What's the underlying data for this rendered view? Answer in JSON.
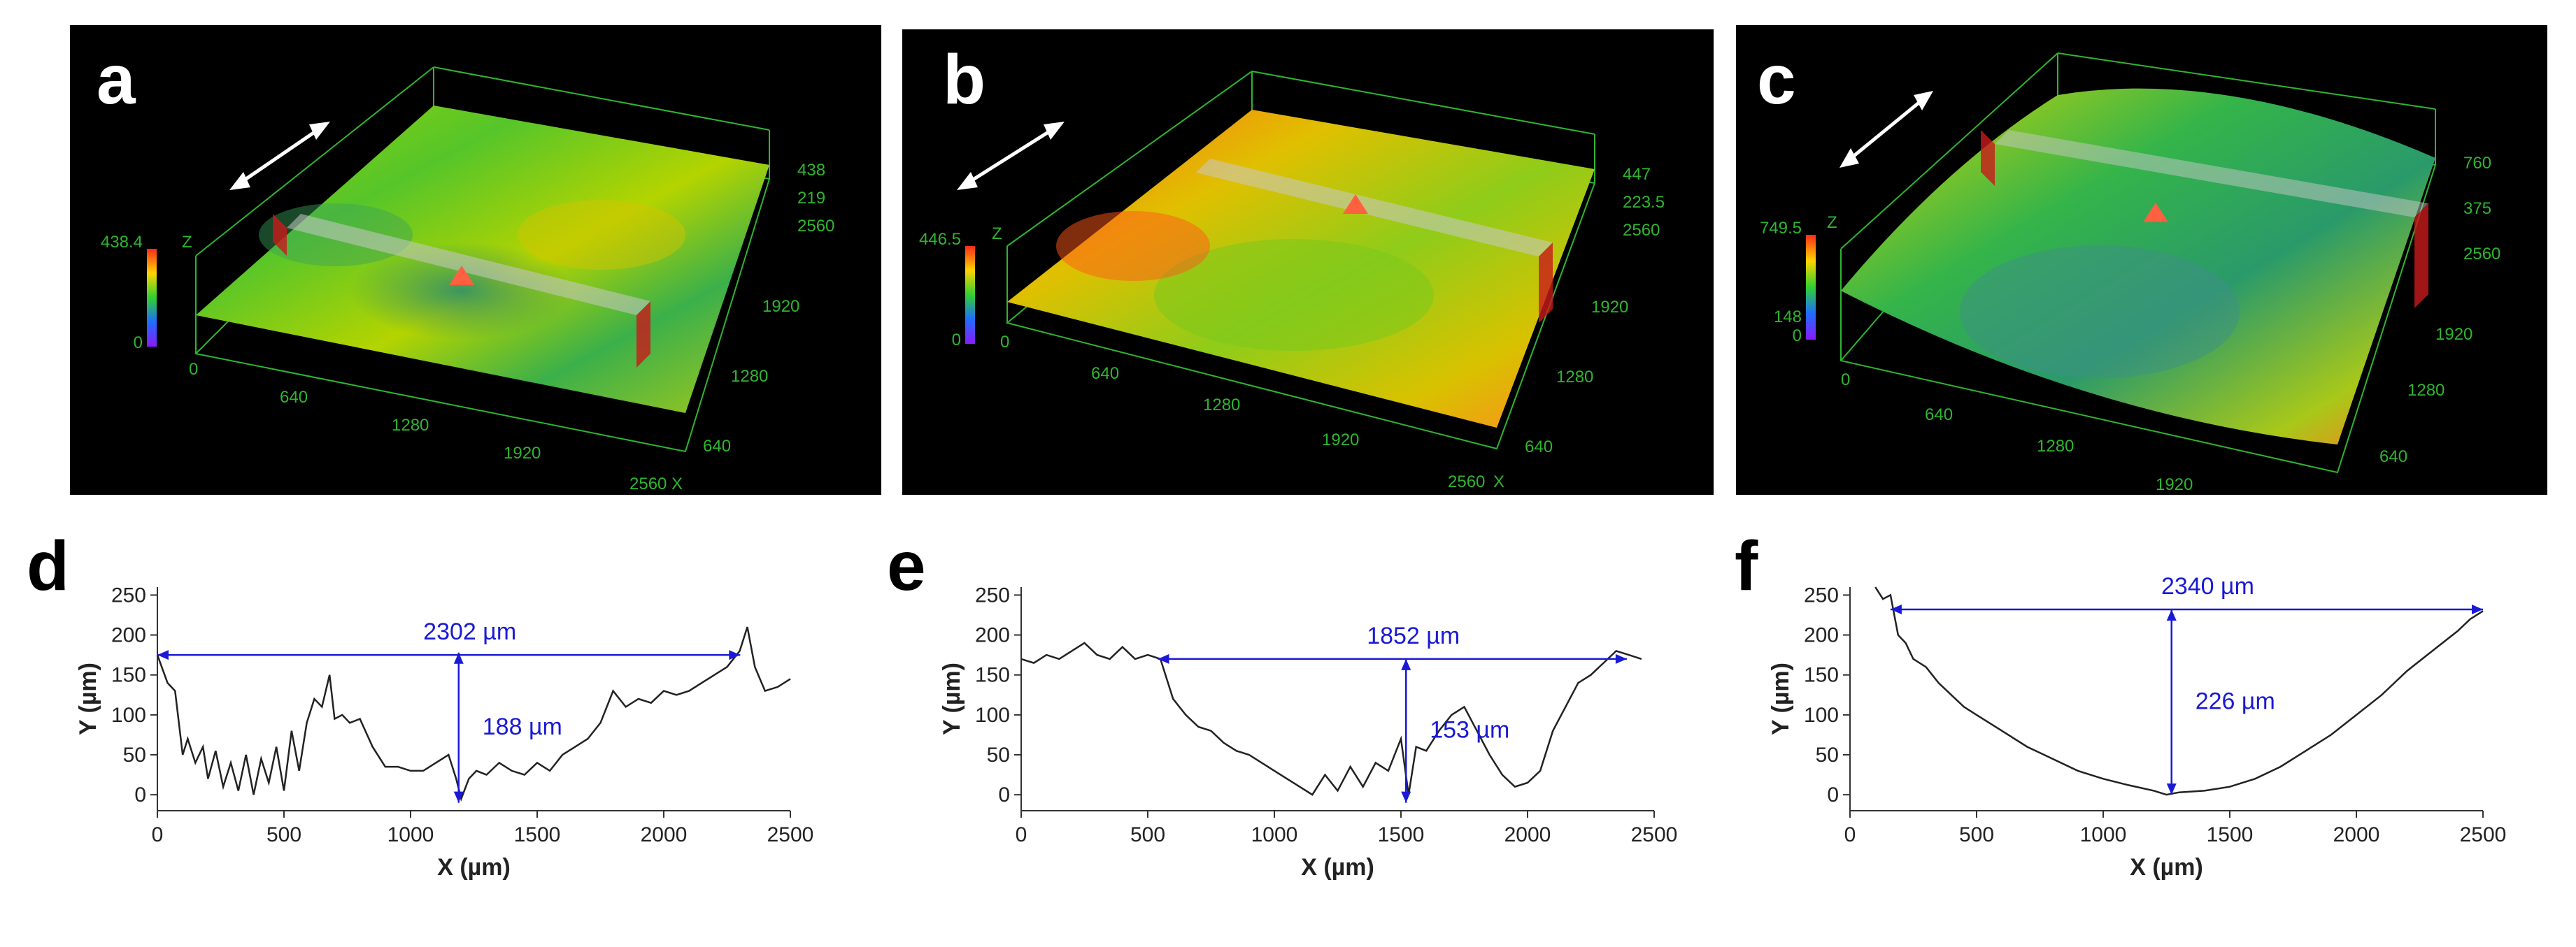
{
  "colors": {
    "profile_line": "#222222",
    "annotation": "#1a1ad6",
    "grid3d": "#2fb52f",
    "panel_bg": "#000000"
  },
  "panels_3d": [
    {
      "letter": "a",
      "z_scale_labels": [
        "438",
        "219",
        "2560"
      ],
      "scale_ticks": [
        "0",
        "438.4"
      ],
      "left_ticks": [
        "0",
        "640",
        "1280",
        "1920",
        "2560"
      ],
      "right_ticks": [
        "1920",
        "1280",
        "640"
      ],
      "x_label": "X",
      "z_label": "Z",
      "tilt": "a"
    },
    {
      "letter": "b",
      "z_scale_labels": [
        "447",
        "223.5",
        "2560"
      ],
      "scale_ticks": [
        "0",
        "446.5"
      ],
      "left_ticks": [
        "0",
        "640",
        "1280",
        "1920",
        "2560"
      ],
      "right_ticks": [
        "1920",
        "1280",
        "640"
      ],
      "x_label": "X",
      "z_label": "Z",
      "tilt": "b"
    },
    {
      "letter": "c",
      "z_scale_labels": [
        "760",
        "375",
        "2560"
      ],
      "scale_ticks": [
        "0",
        "148",
        "749.5"
      ],
      "left_ticks": [
        "0",
        "640",
        "1280",
        "1920"
      ],
      "right_ticks": [
        "1920",
        "1280",
        "640"
      ],
      "x_label": "X",
      "z_label": "Z",
      "tilt": "c"
    }
  ],
  "chart_data": [
    {
      "panel": "d",
      "type": "line",
      "xlabel": "X (µm)",
      "ylabel": "Y (µm)",
      "xlim": [
        0,
        2500
      ],
      "ylim": [
        -20,
        260
      ],
      "x_ticks": [
        0,
        500,
        1000,
        1500,
        2000,
        2500
      ],
      "y_ticks": [
        0,
        50,
        100,
        150,
        200,
        250
      ],
      "x": [
        0,
        40,
        70,
        100,
        120,
        150,
        180,
        200,
        230,
        260,
        290,
        320,
        350,
        380,
        410,
        440,
        470,
        500,
        530,
        560,
        590,
        620,
        650,
        680,
        700,
        730,
        760,
        800,
        850,
        900,
        950,
        1000,
        1050,
        1100,
        1150,
        1180,
        1200,
        1230,
        1260,
        1300,
        1350,
        1400,
        1450,
        1500,
        1550,
        1600,
        1650,
        1700,
        1750,
        1800,
        1850,
        1900,
        1950,
        2000,
        2050,
        2100,
        2150,
        2200,
        2250,
        2300,
        2330,
        2360,
        2400,
        2450,
        2500
      ],
      "y": [
        175,
        140,
        130,
        50,
        70,
        40,
        60,
        20,
        55,
        10,
        40,
        5,
        50,
        0,
        45,
        15,
        60,
        5,
        80,
        30,
        90,
        120,
        110,
        150,
        95,
        100,
        90,
        95,
        60,
        35,
        35,
        30,
        30,
        40,
        50,
        20,
        -5,
        20,
        30,
        25,
        40,
        30,
        25,
        40,
        30,
        50,
        60,
        70,
        90,
        130,
        110,
        120,
        115,
        130,
        125,
        130,
        140,
        150,
        160,
        180,
        210,
        160,
        130,
        135,
        145
      ],
      "annotations": [
        {
          "text": "2302 µm",
          "kind": "horizontal",
          "x1": 0,
          "x2": 2302,
          "y": 175
        },
        {
          "text": "188 µm",
          "kind": "vertical",
          "x": 1190,
          "y1": -10,
          "y2": 178
        }
      ]
    },
    {
      "panel": "e",
      "type": "line",
      "xlabel": "X (µm)",
      "ylabel": "Y (µm)",
      "xlim": [
        0,
        2500
      ],
      "ylim": [
        -20,
        260
      ],
      "x_ticks": [
        0,
        500,
        1000,
        1500,
        2000,
        2500
      ],
      "y_ticks": [
        0,
        50,
        100,
        150,
        200,
        250
      ],
      "x": [
        0,
        50,
        100,
        150,
        200,
        250,
        300,
        350,
        400,
        450,
        500,
        550,
        600,
        650,
        700,
        750,
        800,
        850,
        900,
        950,
        1000,
        1050,
        1100,
        1150,
        1200,
        1250,
        1300,
        1350,
        1400,
        1450,
        1500,
        1530,
        1560,
        1600,
        1650,
        1700,
        1750,
        1800,
        1850,
        1900,
        1950,
        2000,
        2050,
        2100,
        2150,
        2200,
        2250,
        2300,
        2350,
        2400,
        2450
      ],
      "y": [
        170,
        165,
        175,
        170,
        180,
        190,
        175,
        170,
        185,
        170,
        175,
        170,
        120,
        100,
        85,
        80,
        65,
        55,
        50,
        40,
        30,
        20,
        10,
        0,
        25,
        5,
        35,
        10,
        40,
        30,
        70,
        0,
        60,
        55,
        80,
        100,
        110,
        80,
        50,
        25,
        10,
        15,
        30,
        80,
        110,
        140,
        150,
        165,
        180,
        175,
        170
      ],
      "annotations": [
        {
          "text": "1852 µm",
          "kind": "horizontal",
          "x1": 540,
          "x2": 2392,
          "y": 170
        },
        {
          "text": "153 µm",
          "kind": "vertical",
          "x": 1520,
          "y1": -10,
          "y2": 170
        }
      ]
    },
    {
      "panel": "f",
      "type": "line",
      "xlabel": "X (µm)",
      "ylabel": "Y (µm)",
      "xlim": [
        0,
        2500
      ],
      "ylim": [
        -20,
        260
      ],
      "x_ticks": [
        0,
        500,
        1000,
        1500,
        2000,
        2500
      ],
      "y_ticks": [
        0,
        50,
        100,
        150,
        200,
        250
      ],
      "x": [
        100,
        130,
        160,
        190,
        220,
        250,
        300,
        350,
        400,
        450,
        500,
        600,
        700,
        800,
        900,
        1000,
        1100,
        1200,
        1250,
        1300,
        1400,
        1500,
        1600,
        1700,
        1800,
        1900,
        2000,
        2100,
        2200,
        2300,
        2400,
        2450,
        2500
      ],
      "y": [
        260,
        245,
        250,
        200,
        190,
        170,
        160,
        140,
        125,
        110,
        100,
        80,
        60,
        45,
        30,
        20,
        12,
        5,
        0,
        3,
        5,
        10,
        20,
        35,
        55,
        75,
        100,
        125,
        155,
        180,
        205,
        220,
        230
      ],
      "annotations": [
        {
          "text": "2340 µm",
          "kind": "horizontal",
          "x1": 160,
          "x2": 2500,
          "y": 232
        },
        {
          "text": "226 µm",
          "kind": "vertical",
          "x": 1270,
          "y1": 0,
          "y2": 232
        }
      ]
    }
  ],
  "letters_2d": [
    "d",
    "e",
    "f"
  ]
}
